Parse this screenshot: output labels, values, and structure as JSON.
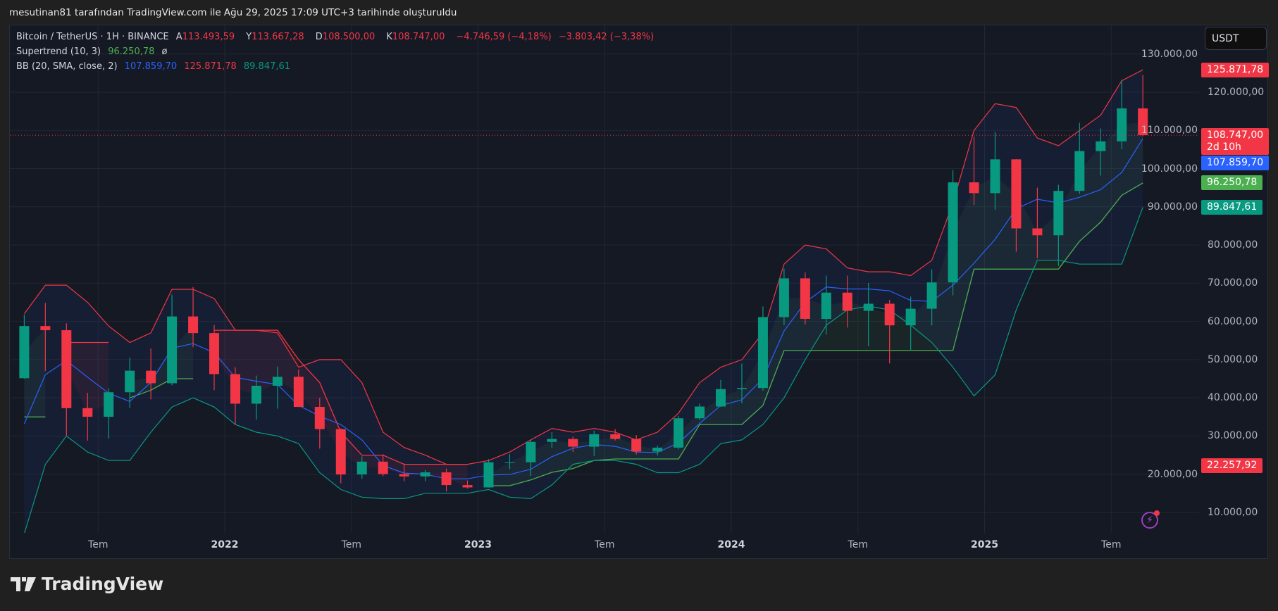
{
  "credit": "mesutinan81 tarafından TradingView.com ile Ağu 29, 2025 17:09 UTC+3 tarihinde oluşturuldu",
  "legend": {
    "symbol": "Bitcoin / TetherUS · 1H · BINANCE",
    "open_label": "A",
    "open": "113.493,59",
    "high_label": "Y",
    "high": "113.667,28",
    "low_label": "D",
    "low": "108.500,00",
    "close_label": "K",
    "close": "108.747,00",
    "change": "−4.746,59 (−4,18%)",
    "change2": "−3.803,42 (−3,38%)",
    "supertrend_label": "Supertrend (10, 3)",
    "supertrend_value": "96.250,78",
    "supertrend_extra": "ø",
    "bb_label": "BB (20, SMA, close, 2)",
    "bb_basis": "107.859,70",
    "bb_upper": "125.871,78",
    "bb_lower": "89.847,61"
  },
  "currency_button": "USDT",
  "price_axis": [
    "130.000,00",
    "120.000,00",
    "110.000,00",
    "100.000,00",
    "90.000,00",
    "80.000,00",
    "70.000,00",
    "60.000,00",
    "50.000,00",
    "40.000,00",
    "30.000,00",
    "20.000,00",
    "10.000,00"
  ],
  "time_axis": [
    {
      "label": "Tem",
      "t": 2021.5,
      "year": false
    },
    {
      "label": "2022",
      "t": 2022.0,
      "year": true
    },
    {
      "label": "Tem",
      "t": 2022.5,
      "year": false
    },
    {
      "label": "2023",
      "t": 2023.0,
      "year": true
    },
    {
      "label": "Tem",
      "t": 2023.5,
      "year": false
    },
    {
      "label": "2024",
      "t": 2024.0,
      "year": true
    },
    {
      "label": "Tem",
      "t": 2024.5,
      "year": false
    },
    {
      "label": "2025",
      "t": 2025.0,
      "year": true
    },
    {
      "label": "Tem",
      "t": 2025.5,
      "year": false
    }
  ],
  "badges": [
    {
      "text": "125.871,78",
      "price": 125871.78,
      "color": "#f23645"
    },
    {
      "text": "108.747,00",
      "sub": "2d 10h",
      "price": 108747.0,
      "color": "#f23645"
    },
    {
      "text": "107.859,70",
      "price": 107859.7,
      "color": "#2962ff"
    },
    {
      "text": "96.250,78",
      "price": 96250.78,
      "color": "#4caf50"
    },
    {
      "text": "89.847,61",
      "price": 89847.61,
      "color": "#089981"
    },
    {
      "text": "22.257,92",
      "price": 22257.92,
      "color": "#f23645"
    }
  ],
  "brand": "TradingView",
  "colors": {
    "up": "#089981",
    "down": "#f23645",
    "bb_basis": "#2962ff",
    "bb_upper": "#f23645",
    "bb_lower": "#089981",
    "st_up": "#4caf50",
    "st_down": "#f23645"
  },
  "chart_data": {
    "type": "candlestick",
    "ylim": [
      0,
      135000
    ],
    "xlim": [
      2021.15,
      2025.9
    ],
    "grid": true,
    "last_price": 108747.0,
    "start": "2021-03",
    "candles_ohlc": [
      [
        45135,
        61788,
        45000,
        58800
      ],
      [
        58800,
        64854,
        47000,
        57700
      ],
      [
        57700,
        59500,
        30000,
        37300
      ],
      [
        37300,
        41330,
        28800,
        35040
      ],
      [
        35040,
        42448,
        29278,
        41460
      ],
      [
        41460,
        50500,
        37332,
        47100
      ],
      [
        47100,
        52920,
        39600,
        43820
      ],
      [
        43820,
        67000,
        43283,
        61300
      ],
      [
        61300,
        69000,
        53256,
        56950
      ],
      [
        56950,
        59053,
        42000,
        46210
      ],
      [
        46210,
        47990,
        32917,
        38466
      ],
      [
        38466,
        45821,
        34322,
        43160
      ],
      [
        43160,
        48189,
        37155,
        45510
      ],
      [
        45510,
        47444,
        37578,
        37630
      ],
      [
        37630,
        40023,
        26700,
        31801
      ],
      [
        31801,
        31982,
        17622,
        19942
      ],
      [
        19942,
        24668,
        18782,
        23293
      ],
      [
        23293,
        25211,
        19520,
        20050
      ],
      [
        20050,
        22799,
        18125,
        19423
      ],
      [
        19423,
        21085,
        18190,
        20490
      ],
      [
        20490,
        21480,
        15476,
        17164
      ],
      [
        17164,
        18387,
        16256,
        16542
      ],
      [
        16542,
        23960,
        16500,
        23125
      ],
      [
        23125,
        25250,
        21351,
        23141
      ],
      [
        23141,
        29184,
        19549,
        28465
      ],
      [
        28465,
        31000,
        26942,
        29233
      ],
      [
        29233,
        29820,
        25811,
        27210
      ],
      [
        27210,
        31431,
        24800,
        30472
      ],
      [
        30472,
        31804,
        28861,
        29232
      ],
      [
        29232,
        30244,
        25166,
        25941
      ],
      [
        25941,
        27483,
        24901,
        26962
      ],
      [
        26962,
        35280,
        26538,
        34639
      ],
      [
        34639,
        38450,
        34097,
        37723
      ],
      [
        37723,
        44700,
        37615,
        42283
      ],
      [
        42283,
        48969,
        38555,
        42580
      ],
      [
        42580,
        63913,
        41884,
        61130
      ],
      [
        61130,
        73777,
        59005,
        71280
      ],
      [
        71280,
        72797,
        59191,
        60672
      ],
      [
        60672,
        71979,
        56552,
        67540
      ],
      [
        67540,
        71997,
        58402,
        62772
      ],
      [
        62772,
        70079,
        53485,
        64628
      ],
      [
        64628,
        65659,
        49000,
        58974
      ],
      [
        58974,
        66498,
        52550,
        63327
      ],
      [
        63327,
        73620,
        58946,
        70215
      ],
      [
        70215,
        99588,
        66835,
        96407
      ],
      [
        96407,
        108353,
        90500,
        93576
      ],
      [
        93576,
        109588,
        89256,
        102430
      ],
      [
        102430,
        102500,
        78258,
        84350
      ],
      [
        84350,
        95000,
        76555,
        82550
      ],
      [
        82550,
        95758,
        74508,
        94172
      ],
      [
        94172,
        111980,
        93377,
        104591
      ],
      [
        104591,
        110530,
        98200,
        107135
      ],
      [
        107135,
        123218,
        105100,
        115764
      ],
      [
        115764,
        124474,
        108500,
        108747
      ]
    ],
    "bb_upper": [
      62000,
      69500,
      69500,
      65000,
      58800,
      54500,
      57000,
      68400,
      68400,
      66000,
      57700,
      57700,
      57000,
      48000,
      50000,
      50000,
      44000,
      31000,
      27000,
      25000,
      22600,
      22600,
      23600,
      25800,
      29000,
      32000,
      31000,
      32000,
      31000,
      29000,
      31000,
      36000,
      44000,
      48000,
      50000,
      57000,
      75000,
      80000,
      79000,
      74000,
      73000,
      73000,
      72000,
      76000,
      91000,
      110000,
      117000,
      116000,
      108000,
      106000,
      110000,
      114000,
      123000,
      125871.78
    ],
    "bb_lower": [
      4400,
      22600,
      30000,
      25800,
      23600,
      23600,
      31000,
      37600,
      40000,
      37600,
      33000,
      31000,
      30000,
      28000,
      20400,
      16000,
      14000,
      13600,
      13600,
      15000,
      15000,
      15000,
      16000,
      14000,
      13600,
      17200,
      22600,
      23600,
      23600,
      22600,
      20400,
      20400,
      22600,
      28000,
      29000,
      33000,
      40000,
      50000,
      59000,
      63000,
      64000,
      63000,
      59000,
      54500,
      48000,
      40500,
      46000,
      63000,
      76000,
      76000,
      75000,
      75000,
      75000,
      89847.61
    ],
    "supertrend": [
      35000,
      35000,
      54500,
      54500,
      54500,
      40000,
      42000,
      45000,
      45000,
      57700,
      57700,
      57700,
      57700,
      50000,
      44000,
      31000,
      25000,
      25000,
      22600,
      22600,
      22600,
      22600,
      17000,
      17000,
      18500,
      20500,
      21500,
      23600,
      24000,
      24000,
      24000,
      24000,
      33000,
      33000,
      33000,
      38000,
      52400,
      52400,
      52400,
      52400,
      52400,
      52400,
      52400,
      52400,
      52400,
      73700,
      73700,
      73700,
      73700,
      73700,
      81000,
      86000,
      93000,
      96250.78
    ],
    "supertrend_dir": [
      "up",
      "up",
      "down",
      "down",
      "down",
      "up",
      "up",
      "up",
      "up",
      "down",
      "down",
      "down",
      "down",
      "down",
      "down",
      "down",
      "down",
      "down",
      "down",
      "down",
      "down",
      "down",
      "up",
      "up",
      "up",
      "up",
      "up",
      "up",
      "up",
      "up",
      "up",
      "up",
      "up",
      "up",
      "up",
      "up",
      "up",
      "up",
      "up",
      "up",
      "up",
      "up",
      "up",
      "up",
      "up",
      "up",
      "up",
      "up",
      "up",
      "up",
      "up",
      "up",
      "up",
      "up"
    ]
  }
}
